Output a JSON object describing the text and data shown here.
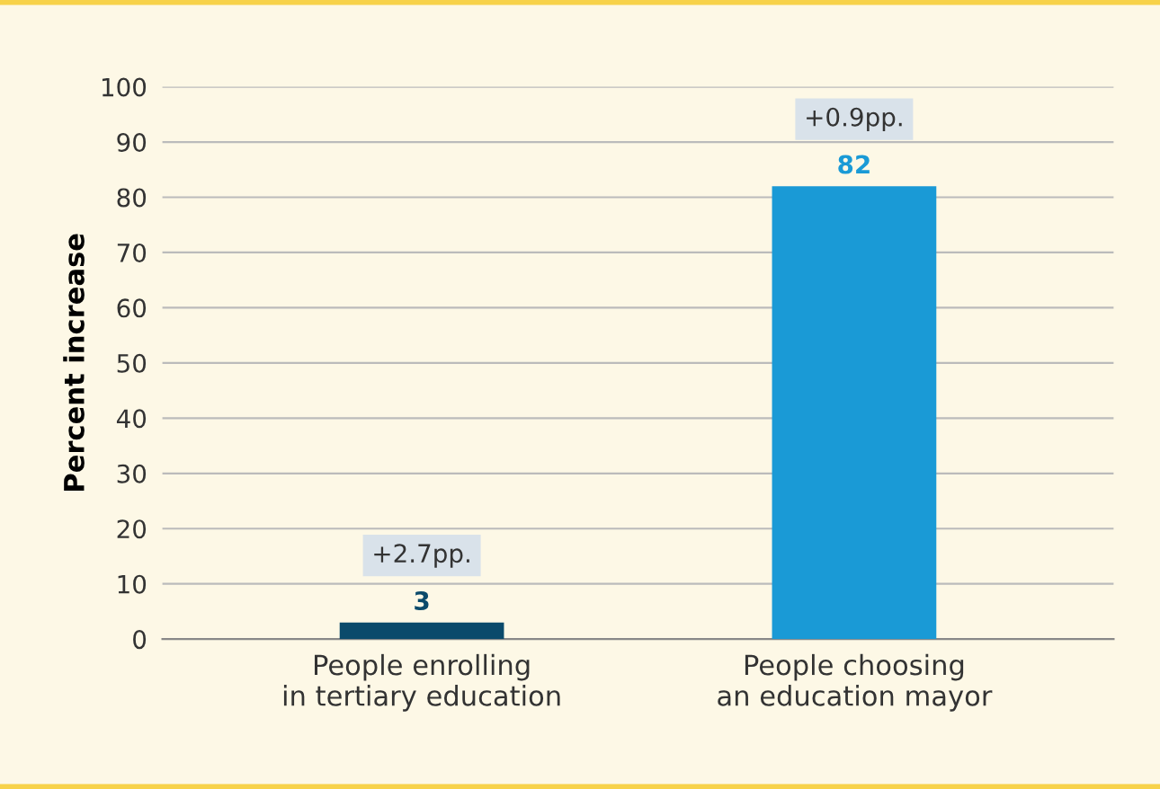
{
  "chart_data": {
    "type": "bar",
    "ylabel": "Percent increase",
    "categories": [
      "People enrolling\nin tertiary education",
      "People choosing\nan education mayor"
    ],
    "values": [
      3,
      82
    ],
    "colors": [
      "#0b4a6b",
      "#1a9ad6"
    ],
    "ylim": [
      0,
      100
    ],
    "yticks": [
      0,
      10,
      20,
      30,
      40,
      50,
      60,
      70,
      80,
      90,
      100
    ],
    "grid": "y",
    "data_labels": true,
    "annotations": [
      {
        "text": "+2.7pp.",
        "x": "People enrolling\nin tertiary education",
        "y": 3
      },
      {
        "text": "+0.9pp.",
        "x": "People choosing\nan education mayor",
        "y": 82
      }
    ]
  }
}
